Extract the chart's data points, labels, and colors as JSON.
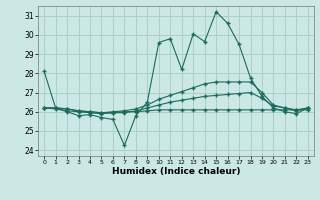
{
  "xlabel": "Humidex (Indice chaleur)",
  "bg_color": "#cce8e4",
  "grid_color": "#aacfcb",
  "line_color": "#1a6b5a",
  "xlim": [
    -0.5,
    23.5
  ],
  "ylim": [
    23.7,
    31.5
  ],
  "yticks": [
    24,
    25,
    26,
    27,
    28,
    29,
    30,
    31
  ],
  "xticks": [
    0,
    1,
    2,
    3,
    4,
    5,
    6,
    7,
    8,
    9,
    10,
    11,
    12,
    13,
    14,
    15,
    16,
    17,
    18,
    19,
    20,
    21,
    22,
    23
  ],
  "line1_x": [
    0,
    1,
    2,
    3,
    4,
    5,
    6,
    7,
    8,
    9,
    10,
    11,
    12,
    13,
    14,
    15,
    16,
    17,
    18,
    19,
    20,
    21,
    22,
    23
  ],
  "line1_y": [
    28.1,
    26.2,
    26.0,
    25.8,
    25.85,
    25.7,
    25.6,
    24.25,
    25.8,
    26.5,
    29.6,
    29.8,
    28.2,
    30.05,
    29.65,
    31.2,
    30.6,
    29.5,
    27.75,
    26.8,
    26.2,
    26.0,
    25.9,
    26.2
  ],
  "line2_x": [
    0,
    1,
    2,
    3,
    4,
    5,
    6,
    7,
    8,
    9,
    10,
    11,
    12,
    13,
    14,
    15,
    16,
    17,
    18,
    19,
    20,
    21,
    22,
    23
  ],
  "line2_y": [
    26.2,
    26.15,
    26.05,
    26.0,
    25.95,
    25.9,
    25.95,
    26.0,
    26.0,
    26.05,
    26.1,
    26.1,
    26.1,
    26.1,
    26.1,
    26.1,
    26.1,
    26.1,
    26.1,
    26.1,
    26.1,
    26.1,
    26.1,
    26.1
  ],
  "line3_x": [
    0,
    1,
    2,
    3,
    4,
    5,
    6,
    7,
    8,
    9,
    10,
    11,
    12,
    13,
    14,
    15,
    16,
    17,
    18,
    19,
    20,
    21,
    22,
    23
  ],
  "line3_y": [
    26.2,
    26.2,
    26.15,
    26.05,
    26.0,
    25.95,
    25.95,
    25.95,
    26.05,
    26.2,
    26.35,
    26.5,
    26.6,
    26.7,
    26.8,
    26.85,
    26.9,
    26.95,
    27.0,
    26.7,
    26.3,
    26.2,
    26.1,
    26.2
  ],
  "line4_x": [
    0,
    1,
    2,
    3,
    4,
    5,
    6,
    7,
    8,
    9,
    10,
    11,
    12,
    13,
    14,
    15,
    16,
    17,
    18,
    19,
    20,
    21,
    22,
    23
  ],
  "line4_y": [
    26.2,
    26.2,
    26.15,
    26.05,
    26.0,
    25.95,
    26.0,
    26.05,
    26.15,
    26.35,
    26.65,
    26.85,
    27.05,
    27.25,
    27.45,
    27.55,
    27.55,
    27.55,
    27.55,
    27.0,
    26.35,
    26.2,
    26.05,
    26.2
  ]
}
